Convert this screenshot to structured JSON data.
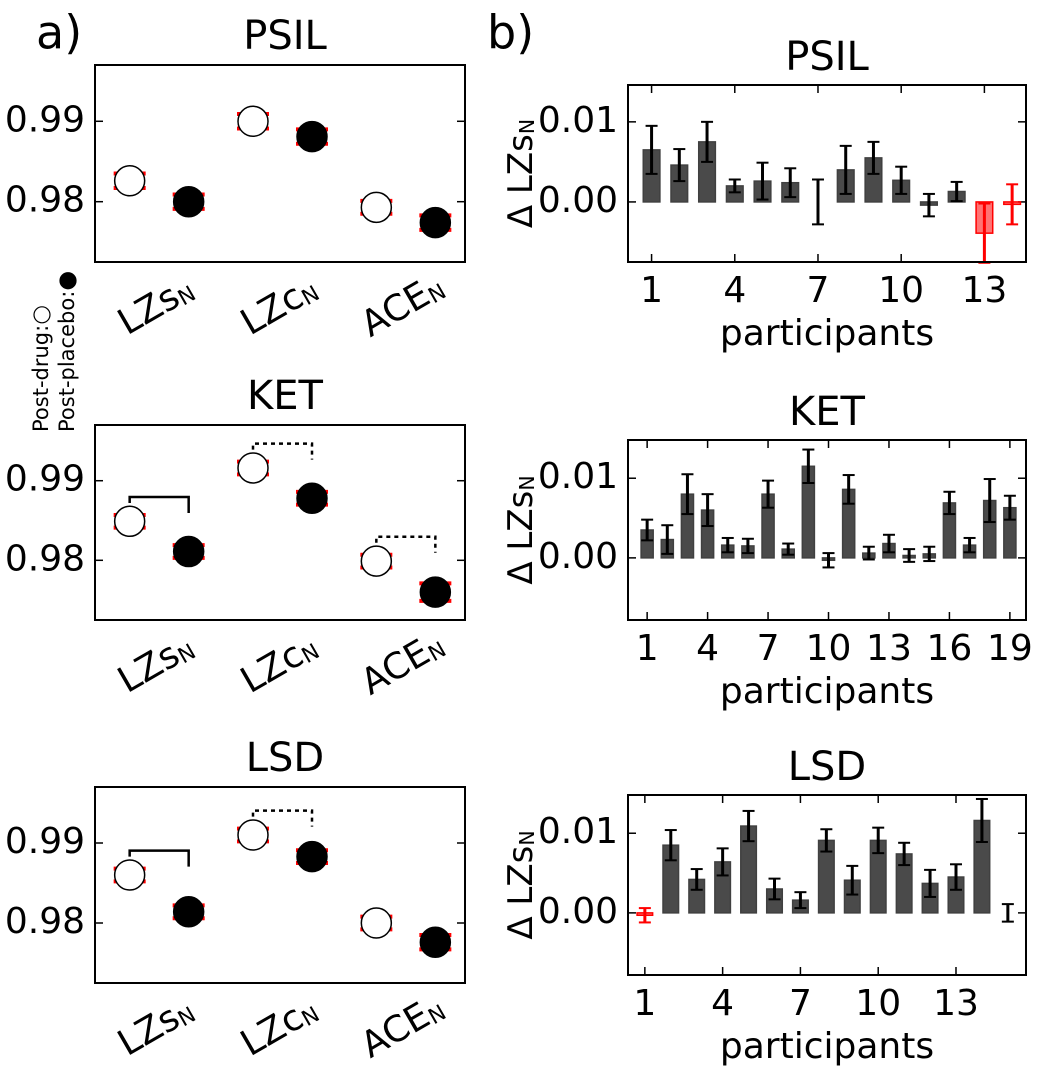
{
  "chart_data": [
    {
      "type": "dot",
      "panel_label": "a)",
      "title": "PSIL",
      "categories": [
        "LZsN",
        "LZcN",
        "ACEN"
      ],
      "series": [
        {
          "name": "Post-drug:",
          "color": "#ffffff",
          "values": [
            0.9826,
            0.99,
            0.9793
          ],
          "errors": [
            0.0009,
            0.0009,
            0.0008
          ]
        },
        {
          "name": "Post-placebo:",
          "color": "#000000",
          "values": [
            0.98,
            0.9881,
            0.9774
          ],
          "errors": [
            0.0009,
            0.0009,
            0.0009
          ]
        }
      ],
      "error_color": "#ff0000",
      "ylim": [
        0.9725,
        0.997
      ],
      "yticks": [
        0.98,
        0.99
      ],
      "significance": [
        null,
        null,
        null
      ]
    },
    {
      "type": "dot",
      "title": "KET",
      "categories": [
        "LZsN",
        "LZcN",
        "ACEN"
      ],
      "series": [
        {
          "color": "#ffffff",
          "values": [
            0.9849,
            0.9916,
            0.9799
          ],
          "errors": [
            0.0008,
            0.0008,
            0.0008
          ]
        },
        {
          "color": "#000000",
          "values": [
            0.9811,
            0.9878,
            0.976
          ],
          "errors": [
            0.0008,
            0.0008,
            0.0011
          ]
        }
      ],
      "error_color": "#ff0000",
      "ylim": [
        0.9725,
        0.997
      ],
      "yticks": [
        0.98,
        0.99
      ],
      "significance": [
        "solid",
        "dashed",
        "dashed"
      ]
    },
    {
      "type": "dot",
      "title": "LSD",
      "categories": [
        "LZsN",
        "LZcN",
        "ACEN"
      ],
      "series": [
        {
          "color": "#ffffff",
          "values": [
            0.986,
            0.991,
            0.98
          ],
          "errors": [
            0.0008,
            0.0008,
            0.0008
          ]
        },
        {
          "color": "#000000",
          "values": [
            0.9814,
            0.9883,
            0.9776
          ],
          "errors": [
            0.0008,
            0.0008,
            0.0009
          ]
        }
      ],
      "error_color": "#ff0000",
      "ylim": [
        0.9725,
        0.997
      ],
      "yticks": [
        0.98,
        0.99
      ],
      "significance": [
        "solid",
        "dashed",
        null
      ]
    },
    {
      "type": "bar",
      "panel_label": "b)",
      "title": "PSIL",
      "ylabel": "Δ LZsN",
      "xlabel": "participants",
      "x": [
        1,
        2,
        3,
        4,
        5,
        6,
        7,
        8,
        9,
        10,
        11,
        12,
        13,
        14
      ],
      "values": [
        0.0065,
        0.0046,
        0.0075,
        0.002,
        0.0026,
        0.0024,
        0.0,
        0.004,
        0.0055,
        0.0027,
        -0.0004,
        0.0013,
        -0.0039,
        -0.0003
      ],
      "errors": [
        0.003,
        0.002,
        0.0025,
        0.0008,
        0.0023,
        0.0018,
        0.0028,
        0.003,
        0.002,
        0.0017,
        0.0014,
        0.0012,
        0.0037,
        0.0025
      ],
      "colors": [
        "#404040",
        "#404040",
        "#404040",
        "#404040",
        "#404040",
        "#404040",
        "#404040",
        "#404040",
        "#404040",
        "#404040",
        "#404040",
        "#404040",
        "#ff0000",
        "#ff0000"
      ],
      "xlim": [
        0.15,
        14.5
      ],
      "xticks": [
        1,
        4,
        7,
        10,
        13
      ],
      "ylim": [
        -0.0075,
        0.0146
      ],
      "yticks": [
        {
          "value": 0,
          "label": "0.00"
        },
        0.01
      ]
    },
    {
      "type": "bar",
      "title": "KET",
      "ylabel": "Δ LZsN",
      "xlabel": "participants",
      "x": [
        1,
        2,
        3,
        4,
        5,
        6,
        7,
        8,
        9,
        10,
        11,
        12,
        13,
        14,
        15,
        16,
        17,
        18,
        19
      ],
      "values": [
        0.0035,
        0.0023,
        0.008,
        0.006,
        0.0016,
        0.0015,
        0.008,
        0.0011,
        0.0115,
        -0.0003,
        0.0086,
        0.0006,
        0.0018,
        0.0003,
        0.0005,
        0.0069,
        0.0016,
        0.0072,
        0.0063
      ],
      "errors": [
        0.0013,
        0.0018,
        0.0025,
        0.002,
        0.0009,
        0.0009,
        0.0017,
        0.0007,
        0.0021,
        0.0009,
        0.0018,
        0.0008,
        0.0011,
        0.0008,
        0.0009,
        0.0014,
        0.0009,
        0.0027,
        0.0015
      ],
      "colors": [
        "#404040",
        "#404040",
        "#404040",
        "#404040",
        "#404040",
        "#404040",
        "#404040",
        "#404040",
        "#404040",
        "#404040",
        "#404040",
        "#404040",
        "#404040",
        "#404040",
        "#404040",
        "#404040",
        "#404040",
        "#404040",
        "#404040"
      ],
      "xlim": [
        0.05,
        19.8
      ],
      "xticks": [
        1,
        4,
        7,
        10,
        13,
        16,
        19
      ],
      "ylim": [
        -0.0078,
        0.0148
      ],
      "yticks": [
        {
          "value": 0,
          "label": "0.00"
        },
        0.01
      ]
    },
    {
      "type": "bar",
      "title": "LSD",
      "ylabel": "Δ LZsN",
      "xlabel": "participants",
      "x": [
        1,
        2,
        3,
        4,
        5,
        6,
        7,
        8,
        9,
        10,
        11,
        12,
        13,
        14,
        15
      ],
      "values": [
        -0.0003,
        0.0085,
        0.0042,
        0.0064,
        0.0109,
        0.003,
        0.0016,
        0.0091,
        0.0041,
        0.0091,
        0.0074,
        0.0037,
        0.0045,
        0.0116,
        0.0
      ],
      "errors": [
        0.0009,
        0.0019,
        0.0013,
        0.0017,
        0.0019,
        0.0013,
        0.001,
        0.0014,
        0.0018,
        0.0016,
        0.0014,
        0.0017,
        0.0016,
        0.0027,
        0.0011
      ],
      "colors": [
        "#ff0000",
        "#404040",
        "#404040",
        "#404040",
        "#404040",
        "#404040",
        "#404040",
        "#404040",
        "#404040",
        "#404040",
        "#404040",
        "#404040",
        "#404040",
        "#404040",
        "#404040"
      ],
      "xlim": [
        0.35,
        15.7
      ],
      "xticks": [
        1,
        4,
        7,
        10,
        13
      ],
      "ylim": [
        -0.0078,
        0.0148
      ],
      "yticks": [
        {
          "value": 0,
          "label": "0.00"
        },
        0.01
      ]
    }
  ]
}
